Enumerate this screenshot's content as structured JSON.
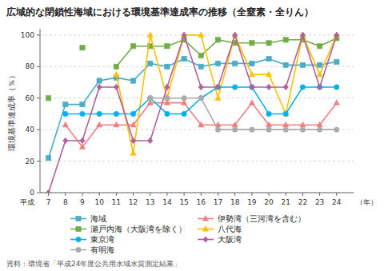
{
  "chart_data": {
    "type": "line",
    "title": "広域的な閉鎖性海域における環境基準達成率の推移（全窒素・全りん）",
    "y_label": "環境基準達成率（％）",
    "annotations": [
      "平成",
      "（年）",
      "資料：環境省「平成24年度公共用水域水質測定結果」"
    ],
    "x": [
      7,
      8,
      9,
      10,
      11,
      12,
      13,
      14,
      15,
      16,
      17,
      18,
      19,
      20,
      21,
      22,
      23,
      24
    ],
    "xlim": [
      6.5,
      25.0
    ],
    "xticks": [
      7,
      8,
      9,
      10,
      11,
      12,
      13,
      14,
      15,
      16,
      17,
      18,
      19,
      20,
      21,
      22,
      23,
      24
    ],
    "ylim": [
      0,
      104
    ],
    "yticks": [
      0,
      20,
      40,
      60,
      80,
      100
    ],
    "grid": true,
    "legend": "bottom",
    "series": [
      {
        "name": "海域",
        "color": "#4bacc6",
        "marker": "square",
        "values": [
          22,
          56,
          56,
          71,
          73,
          71,
          82,
          80,
          85,
          80,
          82,
          82,
          82,
          85,
          81,
          81,
          81,
          83
        ]
      },
      {
        "name": "伊勢湾（三河湾を含む）",
        "color": "#f08080",
        "marker": "triangle",
        "values": [
          null,
          43,
          29,
          43,
          43,
          43,
          57,
          57,
          57,
          43,
          43,
          43,
          57,
          43,
          43,
          43,
          43,
          57
        ]
      },
      {
        "name": "瀬戸内海（大阪湾を除く）",
        "color": "#70ad47",
        "marker": "square",
        "values": [
          60,
          null,
          92,
          null,
          80,
          93,
          93,
          93,
          97,
          87,
          97,
          95,
          95,
          95,
          97,
          97,
          93,
          98
        ]
      },
      {
        "name": "八代海",
        "color": "#ffc000",
        "marker": "triangle",
        "values": [
          null,
          null,
          null,
          null,
          75,
          25,
          100,
          60,
          100,
          100,
          60,
          100,
          75,
          75,
          50,
          100,
          75,
          100
        ]
      },
      {
        "name": "東京湾",
        "color": "#00b0f0",
        "marker": "circle",
        "values": [
          null,
          50,
          50,
          50,
          50,
          50,
          60,
          50,
          50,
          60,
          67,
          67,
          67,
          50,
          50,
          67,
          67,
          67
        ]
      },
      {
        "name": "大阪湾",
        "color": "#b060a0",
        "marker": "diamond",
        "values": [
          0,
          33,
          33,
          67,
          67,
          33,
          33,
          67,
          100,
          67,
          67,
          100,
          67,
          67,
          67,
          100,
          67,
          100
        ]
      },
      {
        "name": "有明海",
        "color": "#aaaaaa",
        "marker": "circle",
        "values": [
          null,
          null,
          null,
          null,
          null,
          null,
          60,
          60,
          60,
          60,
          40,
          40,
          40,
          40,
          40,
          40,
          40,
          40
        ]
      }
    ]
  }
}
